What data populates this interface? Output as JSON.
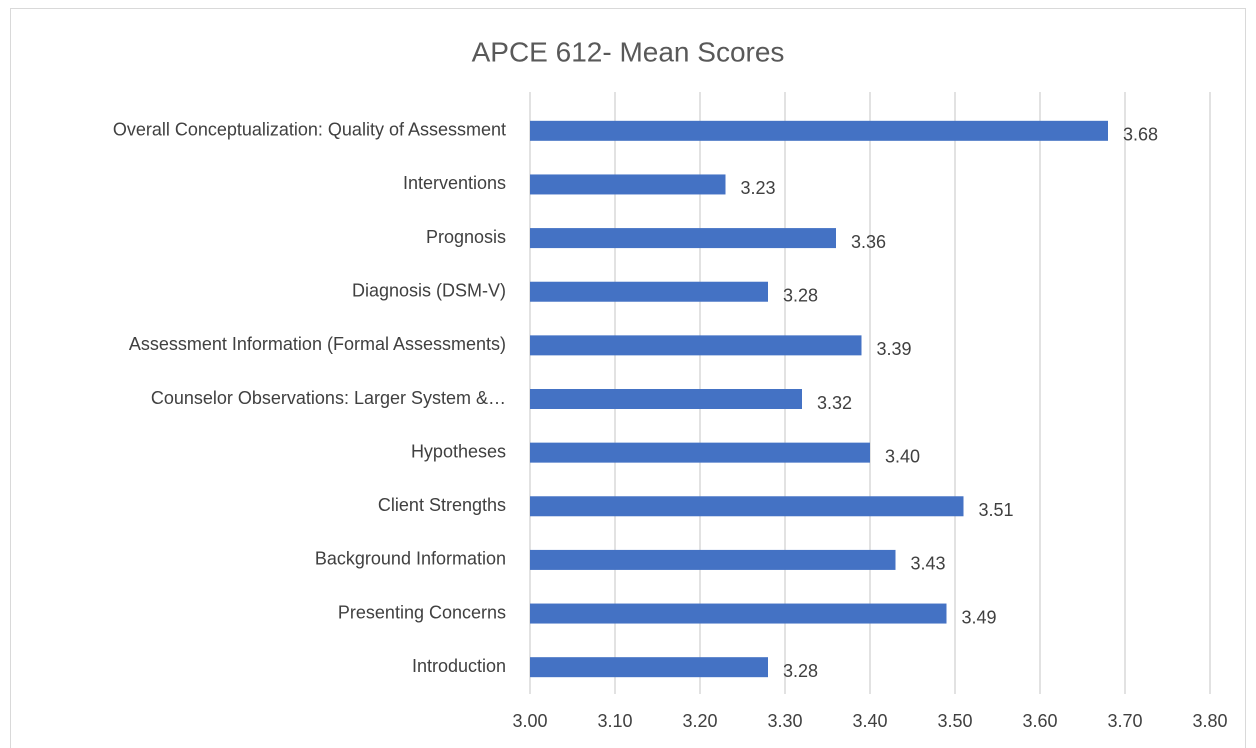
{
  "chart_data": {
    "type": "bar",
    "orientation": "horizontal",
    "title": "APCE 612- Mean Scores",
    "categories": [
      "Overall Conceptualization: Quality of Assessment",
      "Interventions",
      "Prognosis",
      "Diagnosis (DSM-V)",
      "Assessment Information (Formal Assessments)",
      "Counselor Observations: Larger System &…",
      "Hypotheses",
      "Client Strengths",
      "Background Information",
      "Presenting Concerns",
      "Introduction"
    ],
    "values": [
      3.68,
      3.23,
      3.36,
      3.28,
      3.39,
      3.32,
      3.4,
      3.51,
      3.43,
      3.49,
      3.28
    ],
    "value_labels": [
      "3.68",
      "3.23",
      "3.36",
      "3.28",
      "3.39",
      "3.32",
      "3.40",
      "3.51",
      "3.43",
      "3.49",
      "3.28"
    ],
    "color": "#4472c4",
    "xlim": [
      3.0,
      3.8
    ],
    "xticks": [
      {
        "value": 3.0,
        "label": "3.00"
      },
      {
        "value": 3.1,
        "label": "3.10"
      },
      {
        "value": 3.2,
        "label": "3.20"
      },
      {
        "value": 3.3,
        "label": "3.30"
      },
      {
        "value": 3.4,
        "label": "3.40"
      },
      {
        "value": 3.5,
        "label": "3.50"
      },
      {
        "value": 3.6,
        "label": "3.60"
      },
      {
        "value": 3.7,
        "label": "3.70"
      },
      {
        "value": 3.8,
        "label": "3.80"
      }
    ],
    "grid": true
  }
}
